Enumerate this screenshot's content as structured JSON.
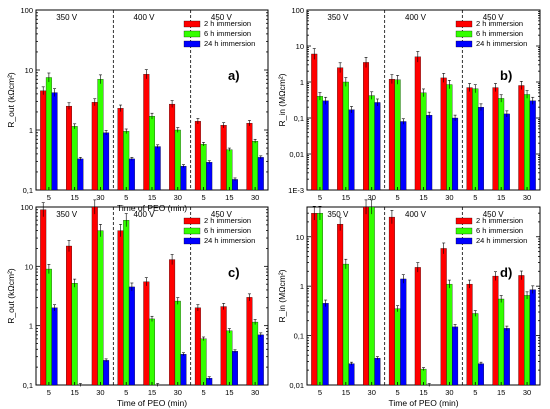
{
  "colors": {
    "2h": "#ff0000",
    "6h": "#33ff00",
    "24h": "#0000ff",
    "axis": "#000000"
  },
  "chart_data": [
    {
      "type": "bar",
      "panel_label": "a)",
      "ylabel": "R_out (kΩcm²)",
      "xlabel": "Time of PEO (min)",
      "y_scale": "log",
      "ylim": [
        0.1,
        100
      ],
      "y_tick_labels": [
        "0,1",
        "1",
        "10",
        "100"
      ],
      "groups": [
        "350 V",
        "400 V",
        "450 V"
      ],
      "categories": [
        "5",
        "15",
        "30",
        "5",
        "15",
        "30",
        "5",
        "15",
        "30"
      ],
      "series": [
        {
          "name": "2 h immersion",
          "values": [
            4.5,
            2.5,
            2.9,
            2.3,
            8.5,
            2.7,
            1.4,
            1.2,
            1.3
          ]
        },
        {
          "name": "6 h immersion",
          "values": [
            7.5,
            1.15,
            7.0,
            0.95,
            1.7,
            1.0,
            0.58,
            0.47,
            0.65
          ]
        },
        {
          "name": "24 h immersion",
          "values": [
            4.2,
            0.33,
            0.9,
            0.33,
            0.53,
            0.25,
            0.29,
            0.15,
            0.35
          ]
        }
      ]
    },
    {
      "type": "bar",
      "panel_label": "b)",
      "ylabel": "R_in (MΩcm²)",
      "xlabel": "",
      "y_scale": "log",
      "ylim": [
        0.001,
        100
      ],
      "y_tick_labels": [
        "1E-3",
        "0,01",
        "0,1",
        "1",
        "10",
        "100"
      ],
      "groups": [
        "350 V",
        "400 V",
        "450 V"
      ],
      "categories": [
        "5",
        "15",
        "30",
        "5",
        "15",
        "30",
        "5",
        "15",
        "30"
      ],
      "series": [
        {
          "name": "2 h immersion",
          "values": [
            6.0,
            2.5,
            3.5,
            1.2,
            5.0,
            1.3,
            0.7,
            0.7,
            0.8
          ]
        },
        {
          "name": "6 h immersion",
          "values": [
            0.4,
            1.0,
            0.42,
            1.15,
            0.5,
            0.85,
            0.65,
            0.35,
            0.45
          ]
        },
        {
          "name": "24 h immersion",
          "values": [
            0.3,
            0.17,
            0.27,
            0.08,
            0.12,
            0.1,
            0.2,
            0.13,
            0.3
          ]
        }
      ]
    },
    {
      "type": "bar",
      "panel_label": "c)",
      "ylabel": "R_out (kΩcm²)",
      "xlabel": "Time of PEO (min)",
      "y_scale": "log",
      "ylim": [
        0.1,
        100
      ],
      "y_tick_labels": [
        "0,1",
        "1",
        "10",
        "100"
      ],
      "groups": [
        "350 V",
        "400 V",
        "450 V"
      ],
      "categories": [
        "5",
        "15",
        "30",
        "5",
        "15",
        "30",
        "5",
        "15",
        "30"
      ],
      "series": [
        {
          "name": "2 h immersion",
          "values": [
            90,
            22,
            100,
            40,
            5.5,
            13,
            2.0,
            2.1,
            3.0
          ]
        },
        {
          "name": "6 h immersion",
          "values": [
            9.0,
            5.2,
            40,
            60,
            1.3,
            2.6,
            0.6,
            0.82,
            1.15
          ]
        },
        {
          "name": "24 h immersion",
          "values": [
            2.0,
            0.1,
            0.26,
            4.5,
            0.1,
            0.33,
            0.13,
            0.37,
            0.7
          ]
        }
      ]
    },
    {
      "type": "bar",
      "panel_label": "d)",
      "ylabel": "R_in (MΩcm²)",
      "xlabel": "Time of PEO (min)",
      "y_scale": "log",
      "ylim": [
        0.01,
        40
      ],
      "y_tick_labels": [
        "0,01",
        "0,1",
        "1",
        "10"
      ],
      "groups": [
        "350 V",
        "400 V",
        "450 V"
      ],
      "categories": [
        "5",
        "15",
        "30",
        "5",
        "15",
        "30",
        "5",
        "15",
        "30"
      ],
      "series": [
        {
          "name": "2 h immersion",
          "values": [
            30,
            18,
            40,
            25,
            2.4,
            5.8,
            1.1,
            1.6,
            1.65
          ]
        },
        {
          "name": "6 h immersion",
          "values": [
            30,
            2.8,
            40,
            0.35,
            0.021,
            1.1,
            0.28,
            0.55,
            0.65
          ]
        },
        {
          "name": "24 h immersion",
          "values": [
            0.45,
            0.027,
            0.035,
            1.4,
            0.008,
            0.15,
            0.027,
            0.14,
            0.85
          ]
        }
      ]
    }
  ]
}
